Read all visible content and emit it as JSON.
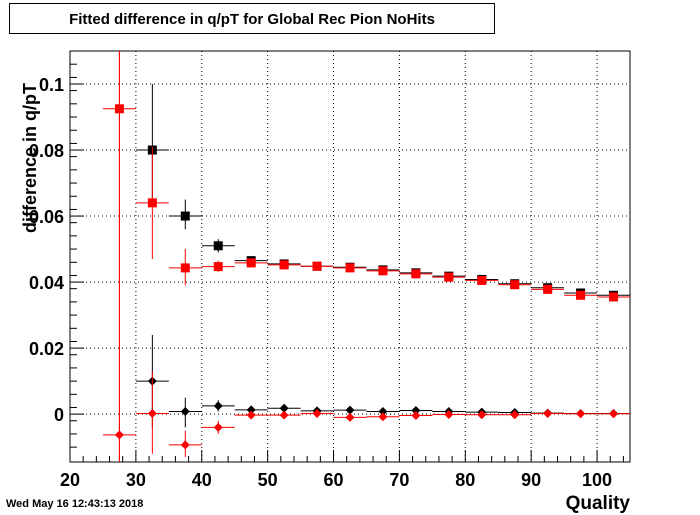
{
  "title": "Fitted difference in q/pT for Global Rec Pion NoHits",
  "timestamp": "Wed May 16 12:43:13 2018",
  "chart_data": {
    "type": "scatter",
    "title": "Fitted difference in q/pT for Global Rec Pion NoHits",
    "xlabel": "Quality",
    "ylabel": "difference in q/pT",
    "xlim": [
      20,
      105
    ],
    "ylim": [
      -0.0145,
      0.11
    ],
    "xticks": [
      "20",
      "30",
      "40",
      "50",
      "60",
      "70",
      "80",
      "90",
      "100"
    ],
    "yticks": [
      "0",
      "0.02",
      "0.04",
      "0.06",
      "0.08",
      "0.1"
    ],
    "grid": true,
    "series": [
      {
        "marker": "square",
        "color": "#000000",
        "points": [
          {
            "x": 32.5,
            "y": 0.08,
            "ylo": 0.064,
            "yhi": 0.1
          },
          {
            "x": 37.5,
            "y": 0.06,
            "ylo": 0.056,
            "yhi": 0.065
          },
          {
            "x": 42.5,
            "y": 0.051,
            "ylo": 0.049,
            "yhi": 0.053
          },
          {
            "x": 47.5,
            "y": 0.0465,
            "ylo": 0.0455,
            "yhi": 0.0475
          },
          {
            "x": 52.5,
            "y": 0.0455,
            "ylo": 0.045,
            "yhi": 0.046
          },
          {
            "x": 57.5,
            "y": 0.0448,
            "ylo": 0.0443,
            "yhi": 0.0453
          },
          {
            "x": 62.5,
            "y": 0.0445,
            "ylo": 0.044,
            "yhi": 0.045
          },
          {
            "x": 67.5,
            "y": 0.0437,
            "ylo": 0.0432,
            "yhi": 0.0442
          },
          {
            "x": 72.5,
            "y": 0.0428,
            "ylo": 0.0424,
            "yhi": 0.0432
          },
          {
            "x": 77.5,
            "y": 0.0418,
            "ylo": 0.0413,
            "yhi": 0.0423
          },
          {
            "x": 82.5,
            "y": 0.0408,
            "ylo": 0.0403,
            "yhi": 0.0413
          },
          {
            "x": 87.5,
            "y": 0.0395,
            "ylo": 0.039,
            "yhi": 0.04
          },
          {
            "x": 92.5,
            "y": 0.0383,
            "ylo": 0.0378,
            "yhi": 0.0388
          },
          {
            "x": 97.5,
            "y": 0.0367,
            "ylo": 0.0362,
            "yhi": 0.0372
          },
          {
            "x": 102.5,
            "y": 0.036,
            "ylo": 0.0355,
            "yhi": 0.0365
          }
        ]
      },
      {
        "marker": "square",
        "color": "#ff0000",
        "points": [
          {
            "x": 27.5,
            "y": 0.0925,
            "ylo": -0.0145,
            "yhi": 0.11
          },
          {
            "x": 32.5,
            "y": 0.064,
            "ylo": 0.047,
            "yhi": 0.081
          },
          {
            "x": 37.5,
            "y": 0.0443,
            "ylo": 0.039,
            "yhi": 0.05
          },
          {
            "x": 42.5,
            "y": 0.0447,
            "ylo": 0.043,
            "yhi": 0.0465
          },
          {
            "x": 47.5,
            "y": 0.0458,
            "ylo": 0.0448,
            "yhi": 0.0468
          },
          {
            "x": 52.5,
            "y": 0.0452,
            "ylo": 0.0446,
            "yhi": 0.0458
          },
          {
            "x": 57.5,
            "y": 0.0448,
            "ylo": 0.0443,
            "yhi": 0.0453
          },
          {
            "x": 62.5,
            "y": 0.0443,
            "ylo": 0.0438,
            "yhi": 0.0448
          },
          {
            "x": 67.5,
            "y": 0.0434,
            "ylo": 0.0429,
            "yhi": 0.0439
          },
          {
            "x": 72.5,
            "y": 0.0425,
            "ylo": 0.0421,
            "yhi": 0.0429
          },
          {
            "x": 77.5,
            "y": 0.0415,
            "ylo": 0.041,
            "yhi": 0.042
          },
          {
            "x": 82.5,
            "y": 0.0405,
            "ylo": 0.04,
            "yhi": 0.041
          },
          {
            "x": 87.5,
            "y": 0.0392,
            "ylo": 0.0387,
            "yhi": 0.0397
          },
          {
            "x": 92.5,
            "y": 0.0378,
            "ylo": 0.0373,
            "yhi": 0.0383
          },
          {
            "x": 97.5,
            "y": 0.036,
            "ylo": 0.0355,
            "yhi": 0.0365
          },
          {
            "x": 102.5,
            "y": 0.0355,
            "ylo": 0.035,
            "yhi": 0.036
          }
        ]
      },
      {
        "marker": "diamond",
        "color": "#000000",
        "points": [
          {
            "x": 32.5,
            "y": 0.01,
            "ylo": -0.004,
            "yhi": 0.024
          },
          {
            "x": 37.5,
            "y": 0.0008,
            "ylo": -0.004,
            "yhi": 0.005
          },
          {
            "x": 42.5,
            "y": 0.0025,
            "ylo": 0.0008,
            "yhi": 0.0042
          },
          {
            "x": 47.5,
            "y": 0.0013,
            "ylo": 0.0005,
            "yhi": 0.0021
          },
          {
            "x": 52.5,
            "y": 0.0018,
            "ylo": 0.0012,
            "yhi": 0.0024
          },
          {
            "x": 57.5,
            "y": 0.001,
            "ylo": 0.0005,
            "yhi": 0.0015
          },
          {
            "x": 62.5,
            "y": 0.0012,
            "ylo": 0.0007,
            "yhi": 0.0017
          },
          {
            "x": 67.5,
            "y": 0.0008,
            "ylo": 0.0004,
            "yhi": 0.0012
          },
          {
            "x": 72.5,
            "y": 0.0011,
            "ylo": 0.0007,
            "yhi": 0.0015
          },
          {
            "x": 77.5,
            "y": 0.0008,
            "ylo": 0.0004,
            "yhi": 0.0012
          },
          {
            "x": 82.5,
            "y": 0.0006,
            "ylo": 0.0002,
            "yhi": 0.001
          },
          {
            "x": 87.5,
            "y": 0.0005,
            "ylo": 0.0001,
            "yhi": 0.0009
          },
          {
            "x": 92.5,
            "y": 0.0003,
            "ylo": 0.0,
            "yhi": 0.0006
          },
          {
            "x": 97.5,
            "y": 0.0002,
            "ylo": -0.0001,
            "yhi": 0.0005
          },
          {
            "x": 102.5,
            "y": 0.0002,
            "ylo": -0.0001,
            "yhi": 0.0005
          }
        ]
      },
      {
        "marker": "diamond",
        "color": "#ff0000",
        "points": [
          {
            "x": 27.5,
            "y": -0.0063,
            "ylo": -0.0145,
            "yhi": 0.11
          },
          {
            "x": 32.5,
            "y": 0.0002,
            "ylo": -0.012,
            "yhi": 0.013
          },
          {
            "x": 37.5,
            "y": -0.0093,
            "ylo": -0.013,
            "yhi": -0.005
          },
          {
            "x": 42.5,
            "y": -0.004,
            "ylo": -0.006,
            "yhi": -0.002
          },
          {
            "x": 47.5,
            "y": -0.0003,
            "ylo": -0.0012,
            "yhi": 0.0006
          },
          {
            "x": 52.5,
            "y": -0.0003,
            "ylo": -0.0009,
            "yhi": 0.0003
          },
          {
            "x": 57.5,
            "y": 0.0002,
            "ylo": -0.0003,
            "yhi": 0.0007
          },
          {
            "x": 62.5,
            "y": -0.001,
            "ylo": -0.0015,
            "yhi": -0.0005
          },
          {
            "x": 67.5,
            "y": -0.0008,
            "ylo": -0.0012,
            "yhi": -0.0004
          },
          {
            "x": 72.5,
            "y": -0.0004,
            "ylo": -0.0008,
            "yhi": 0.0
          },
          {
            "x": 77.5,
            "y": -0.0001,
            "ylo": -0.0005,
            "yhi": 0.0003
          },
          {
            "x": 82.5,
            "y": -0.0002,
            "ylo": -0.0006,
            "yhi": 0.0002
          },
          {
            "x": 87.5,
            "y": -0.0002,
            "ylo": -0.0006,
            "yhi": 0.0002
          },
          {
            "x": 92.5,
            "y": 0.0002,
            "ylo": -0.0001,
            "yhi": 0.0005
          },
          {
            "x": 97.5,
            "y": 0.0001,
            "ylo": -0.0002,
            "yhi": 0.0004
          },
          {
            "x": 102.5,
            "y": 0.0001,
            "ylo": -0.0002,
            "yhi": 0.0004
          }
        ]
      }
    ]
  }
}
